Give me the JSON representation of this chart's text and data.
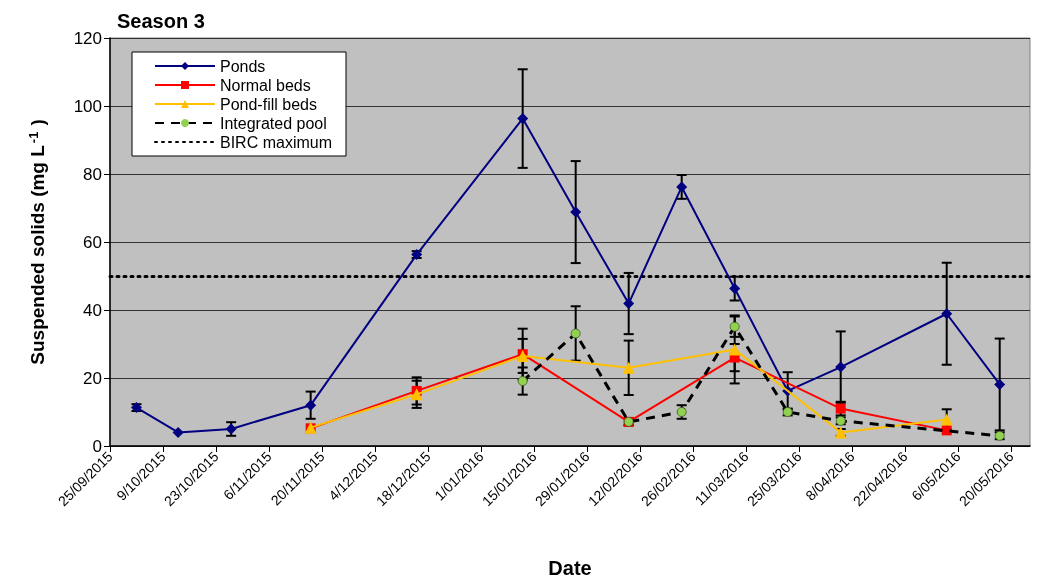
{
  "chart_data": {
    "type": "line",
    "title": "Season 3",
    "xlabel": "Date",
    "ylabel": "Suspended solids (mg L$^{-1}$)",
    "xlim": [
      "2015-09-25",
      "2016-05-25"
    ],
    "xticks": [
      {
        "value": "2015-09-25",
        "label": "25/09/2015"
      },
      {
        "value": "2015-10-09",
        "label": "9/10/2015"
      },
      {
        "value": "2015-10-23",
        "label": "23/10/2015"
      },
      {
        "value": "2015-11-06",
        "label": "6/11/2015"
      },
      {
        "value": "2015-11-20",
        "label": "20/11/2015"
      },
      {
        "value": "2015-12-04",
        "label": "4/12/2015"
      },
      {
        "value": "2015-12-18",
        "label": "18/12/2015"
      },
      {
        "value": "2016-01-01",
        "label": "1/01/2016"
      },
      {
        "value": "2016-01-15",
        "label": "15/01/2016"
      },
      {
        "value": "2016-01-29",
        "label": "29/01/2016"
      },
      {
        "value": "2016-02-12",
        "label": "12/02/2016"
      },
      {
        "value": "2016-02-26",
        "label": "26/02/2016"
      },
      {
        "value": "2016-03-11",
        "label": "11/03/2016"
      },
      {
        "value": "2016-03-25",
        "label": "25/03/2016"
      },
      {
        "value": "2016-04-08",
        "label": "8/04/2016"
      },
      {
        "value": "2016-04-22",
        "label": "22/04/2016"
      },
      {
        "value": "2016-05-06",
        "label": "6/05/2016"
      },
      {
        "value": "2016-05-20",
        "label": "20/05/2016"
      }
    ],
    "ylim": [
      0,
      120
    ],
    "yticks": [
      0,
      20,
      40,
      60,
      80,
      100,
      120
    ],
    "grid": "y",
    "legend": "top left",
    "ref_lines": [
      {
        "axis": "y",
        "value": 50,
        "label": "BIRC maximum",
        "color": "#000000",
        "line_style": "dotted"
      }
    ],
    "series": [
      {
        "name": "Ponds",
        "color": "#000080",
        "marker": "diamond",
        "line_style": "solid",
        "x": [
          "2015-10-02",
          "2015-10-13",
          "2015-10-27",
          "2015-11-17",
          "2015-12-15",
          "2016-01-12",
          "2016-01-26",
          "2016-02-09",
          "2016-02-23",
          "2016-03-08",
          "2016-03-22",
          "2016-04-05",
          "2016-05-03",
          "2016-05-17"
        ],
        "values": [
          11.3,
          4,
          5,
          12,
          56.3,
          96.3,
          68.8,
          41.9,
          76.2,
          46.3,
          16.2,
          23.2,
          38.9,
          18.1
        ],
        "errors": [
          1,
          null,
          2,
          4,
          1,
          14.5,
          15,
          9,
          3.5,
          3.5,
          5.5,
          10.5,
          15,
          13.5
        ]
      },
      {
        "name": "Normal beds",
        "color": "#ff0000",
        "marker": "square",
        "line_style": "solid",
        "x": [
          "2015-11-17",
          "2015-12-15",
          "2016-01-12",
          "2016-02-09",
          "2016-03-08",
          "2016-04-05",
          "2016-05-03"
        ],
        "values": [
          5.2,
          16.2,
          27,
          7.1,
          26,
          11,
          4.6
        ],
        "errors": [
          null,
          4,
          7.5,
          1,
          4,
          2,
          null
        ]
      },
      {
        "name": "Pond-fill beds",
        "color": "#ffc000",
        "marker": "triangle",
        "line_style": "solid",
        "x": [
          "2015-11-17",
          "2015-12-15",
          "2016-01-12",
          "2016-02-09",
          "2016-03-08",
          "2016-04-05",
          "2016-05-03"
        ],
        "values": [
          5.4,
          15.2,
          26.5,
          23,
          28.4,
          4,
          7.8
        ],
        "errors": [
          null,
          4,
          5,
          8,
          10,
          1,
          3
        ]
      },
      {
        "name": "Integrated pool",
        "color": "#000000",
        "colors": [
          "#92d050",
          "#92d050",
          "#92d050",
          "#92d050",
          "#92d050",
          "#92d050",
          "#92d050",
          "#92d050"
        ],
        "marker": "circle",
        "line_style": "dashed",
        "x": [
          "2016-01-12",
          "2016-01-26",
          "2016-02-09",
          "2016-02-23",
          "2016-03-08",
          "2016-03-22",
          "2016-04-05",
          "2016-05-17"
        ],
        "values": [
          19.1,
          33.1,
          7.1,
          10,
          35.1,
          10,
          7.4,
          3
        ],
        "errors": [
          4,
          8,
          1,
          2,
          3,
          1,
          1,
          1
        ]
      }
    ]
  }
}
